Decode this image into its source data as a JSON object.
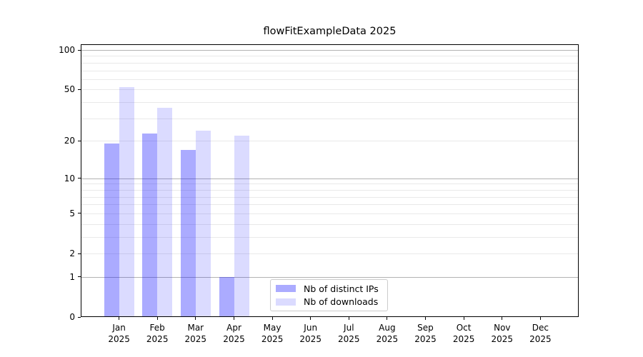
{
  "chart_data": {
    "type": "bar",
    "title": "flowFitExampleData 2025",
    "x_year_label": "2025",
    "categories": [
      "Jan",
      "Feb",
      "Mar",
      "Apr",
      "May",
      "Jun",
      "Jul",
      "Aug",
      "Sep",
      "Oct",
      "Nov",
      "Dec"
    ],
    "series": [
      {
        "name": "Nb of distinct IPs",
        "color": "#aaaaff",
        "fill": "rgba(0,0,255,0.33)",
        "values": [
          19,
          23,
          17,
          1,
          0,
          0,
          0,
          0,
          0,
          0,
          0,
          0
        ]
      },
      {
        "name": "Nb of downloads",
        "color": "#dcdcff",
        "fill": "rgba(0,0,255,0.14)",
        "values": [
          52,
          36,
          24,
          22,
          0,
          0,
          0,
          0,
          0,
          0,
          0,
          0
        ]
      }
    ],
    "yscale": "log10(1+x)",
    "ylim": [
      0,
      110
    ],
    "yticks": {
      "values": [
        100,
        50,
        20,
        10,
        5,
        2,
        1,
        0
      ],
      "labels": [
        "100",
        "50",
        "20",
        "10",
        "5",
        "2",
        "1",
        "0"
      ]
    },
    "grid": {
      "major_values": [
        1,
        10,
        100
      ],
      "minor_values": [
        2,
        3,
        4,
        5,
        6,
        7,
        8,
        9,
        20,
        30,
        40,
        50,
        60,
        70,
        80,
        90
      ],
      "major_color": "#b3b3b3",
      "minor_color": "#e9e9e9"
    },
    "legend_position": "lower center"
  }
}
